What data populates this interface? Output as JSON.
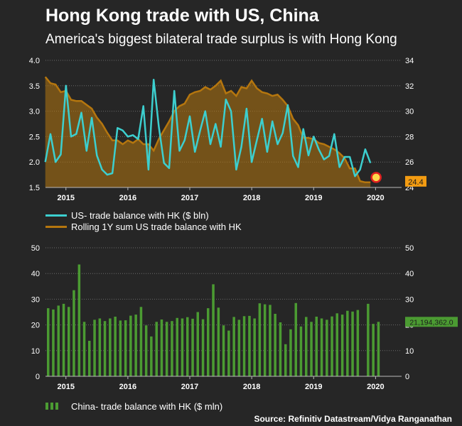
{
  "header": {
    "title": "Hong Kong trade with US, China",
    "subtitle": "America's biggest bilateral trade surplus is with Hong Kong"
  },
  "colors": {
    "line": "#3ccfcf",
    "area": "#b5760e",
    "bar": "#4b9b32",
    "background": "#262626"
  },
  "legend": {
    "line_label": "US- trade balance with HK ($ bln)",
    "area_label": "Rolling 1Y sum US trade balance with HK",
    "bar_label": "China- trade balance with HK ($ mln)"
  },
  "source": "Source: Refinitiv Datastream/Vidya Ranganathan",
  "chart_data": [
    {
      "type": "line",
      "x_labels": [
        "2015",
        "2016",
        "2017",
        "2018",
        "2019",
        "2020"
      ],
      "x_label_positions": [
        2015.0,
        2016.0,
        2017.0,
        2018.0,
        2019.0,
        2020.0
      ],
      "x_range": [
        2014.67,
        2020.42
      ],
      "left_axis": {
        "ticks": [
          "1.5",
          "2.0",
          "2.5",
          "3.0",
          "3.5",
          "4.0"
        ],
        "range": [
          1.5,
          4.0
        ]
      },
      "right_axis": {
        "ticks": [
          "24",
          "26",
          "28",
          "30",
          "32",
          "34"
        ],
        "range": [
          24,
          34
        ]
      },
      "grid": "horizontal dotted",
      "series": [
        {
          "name": "US- trade balance with HK ($ bln)",
          "axis": "left",
          "x": [
            2014.667,
            2014.75,
            2014.833,
            2014.917,
            2015.0,
            2015.083,
            2015.167,
            2015.25,
            2015.333,
            2015.417,
            2015.5,
            2015.583,
            2015.667,
            2015.75,
            2015.833,
            2015.917,
            2016.0,
            2016.083,
            2016.167,
            2016.25,
            2016.333,
            2016.417,
            2016.5,
            2016.583,
            2016.667,
            2016.75,
            2016.833,
            2016.917,
            2017.0,
            2017.083,
            2017.167,
            2017.25,
            2017.333,
            2017.417,
            2017.5,
            2017.583,
            2017.667,
            2017.75,
            2017.833,
            2017.917,
            2018.0,
            2018.083,
            2018.167,
            2018.25,
            2018.333,
            2018.417,
            2018.5,
            2018.583,
            2018.667,
            2018.75,
            2018.833,
            2018.917,
            2019.0,
            2019.083,
            2019.167,
            2019.25,
            2019.333,
            2019.417,
            2019.5,
            2019.583,
            2019.667,
            2019.75,
            2019.833,
            2019.917
          ],
          "values": [
            2.0,
            2.55,
            2.0,
            2.15,
            3.5,
            2.5,
            2.55,
            2.97,
            2.22,
            2.87,
            2.13,
            1.85,
            1.75,
            1.78,
            2.67,
            2.62,
            2.5,
            2.53,
            2.45,
            3.1,
            1.85,
            3.62,
            2.7,
            1.98,
            1.88,
            3.4,
            2.22,
            2.43,
            2.9,
            2.2,
            2.62,
            3.0,
            2.35,
            2.75,
            2.3,
            3.23,
            3.0,
            1.85,
            2.3,
            3.05,
            2.0,
            2.43,
            2.85,
            2.2,
            2.8,
            2.35,
            2.57,
            3.12,
            2.12,
            1.9,
            2.65,
            2.13,
            2.5,
            2.25,
            2.05,
            2.12,
            2.55,
            1.9,
            2.1,
            2.1,
            1.72,
            1.85,
            2.25,
            1.98
          ]
        },
        {
          "name": "Rolling 1Y sum US trade balance with HK",
          "axis": "right",
          "x": [
            2014.667,
            2014.75,
            2014.833,
            2014.917,
            2015.0,
            2015.083,
            2015.167,
            2015.25,
            2015.333,
            2015.417,
            2015.5,
            2015.583,
            2015.667,
            2015.75,
            2015.833,
            2015.917,
            2016.0,
            2016.083,
            2016.167,
            2016.25,
            2016.333,
            2016.417,
            2016.5,
            2016.583,
            2016.667,
            2016.75,
            2016.833,
            2016.917,
            2017.0,
            2017.083,
            2017.167,
            2017.25,
            2017.333,
            2017.417,
            2017.5,
            2017.583,
            2017.667,
            2017.75,
            2017.833,
            2017.917,
            2018.0,
            2018.083,
            2018.167,
            2018.25,
            2018.333,
            2018.417,
            2018.5,
            2018.583,
            2018.667,
            2018.75,
            2018.833,
            2018.917,
            2019.0,
            2019.083,
            2019.167,
            2019.25,
            2019.333,
            2019.417,
            2019.5,
            2019.583,
            2019.667,
            2019.75,
            2019.833,
            2019.917
          ],
          "values": [
            32.7,
            32.2,
            32.1,
            31.5,
            31.6,
            30.9,
            30.8,
            30.8,
            30.5,
            30.2,
            29.5,
            29.0,
            28.3,
            27.7,
            27.7,
            27.4,
            27.7,
            27.5,
            27.8,
            27.4,
            27.4,
            26.9,
            27.8,
            28.5,
            29.2,
            30.0,
            30.4,
            30.6,
            31.3,
            31.5,
            31.6,
            31.9,
            31.7,
            32.0,
            32.4,
            31.4,
            31.6,
            31.2,
            31.9,
            31.8,
            32.4,
            31.8,
            31.5,
            31.4,
            31.2,
            31.3,
            30.9,
            30.4,
            29.4,
            28.9,
            27.9,
            27.9,
            27.8,
            27.5,
            27.4,
            27.2,
            27.0,
            26.7,
            26.3,
            25.5,
            25.5,
            24.5,
            24.4,
            24.4
          ]
        }
      ],
      "end_marker": {
        "series": "Rolling 1Y sum US trade balance with HK",
        "label": "24.4"
      }
    },
    {
      "type": "bar",
      "x_labels": [
        "2015",
        "2016",
        "2017",
        "2018",
        "2019",
        "2020"
      ],
      "x_label_positions": [
        2015.0,
        2016.0,
        2017.0,
        2018.0,
        2019.0,
        2020.0
      ],
      "x_range": [
        2014.67,
        2020.42
      ],
      "y_ticks": [
        "0",
        "10",
        "20",
        "30",
        "40",
        "50"
      ],
      "ylim": [
        0,
        50
      ],
      "grid": "horizontal dotted",
      "series": [
        {
          "name": "China- trade balance with HK ($ mln)",
          "x": [
            2014.667,
            2014.75,
            2014.833,
            2014.917,
            2015.0,
            2015.083,
            2015.167,
            2015.25,
            2015.333,
            2015.417,
            2015.5,
            2015.583,
            2015.667,
            2015.75,
            2015.833,
            2015.917,
            2016.0,
            2016.083,
            2016.167,
            2016.25,
            2016.333,
            2016.417,
            2016.5,
            2016.583,
            2016.667,
            2016.75,
            2016.833,
            2016.917,
            2017.0,
            2017.083,
            2017.167,
            2017.25,
            2017.333,
            2017.417,
            2017.5,
            2017.583,
            2017.667,
            2017.75,
            2017.833,
            2017.917,
            2018.0,
            2018.083,
            2018.167,
            2018.25,
            2018.333,
            2018.417,
            2018.5,
            2018.583,
            2018.667,
            2018.75,
            2018.833,
            2018.917,
            2019.0,
            2019.083,
            2019.167,
            2019.25,
            2019.333,
            2019.417,
            2019.5,
            2019.583,
            2019.667,
            2019.75,
            2019.833,
            2019.917,
            2020.0
          ],
          "values": [
            26.5,
            26.0,
            27.5,
            28.2,
            27.0,
            33.5,
            43.5,
            21.2,
            13.8,
            22.0,
            22.5,
            21.5,
            22.5,
            23.2,
            21.7,
            21.8,
            23.6,
            24.0,
            27.0,
            19.8,
            15.5,
            21.2,
            22.1,
            21.2,
            21.5,
            22.7,
            22.5,
            23.0,
            22.4,
            25.0,
            22.2,
            26.5,
            35.8,
            26.7,
            19.8,
            17.8,
            23.1,
            22.0,
            23.4,
            23.5,
            22.5,
            28.4,
            28.0,
            27.8,
            24.3,
            21.0,
            12.5,
            18.3,
            28.5,
            19.4,
            23.1,
            21.2,
            23.2,
            22.5,
            22.0,
            23.3,
            24.5,
            24.0,
            25.5,
            25.2,
            25.8,
            0,
            28.2,
            20.4,
            21.19
          ],
          "end_label": "21,194,362.0"
        }
      ]
    }
  ]
}
